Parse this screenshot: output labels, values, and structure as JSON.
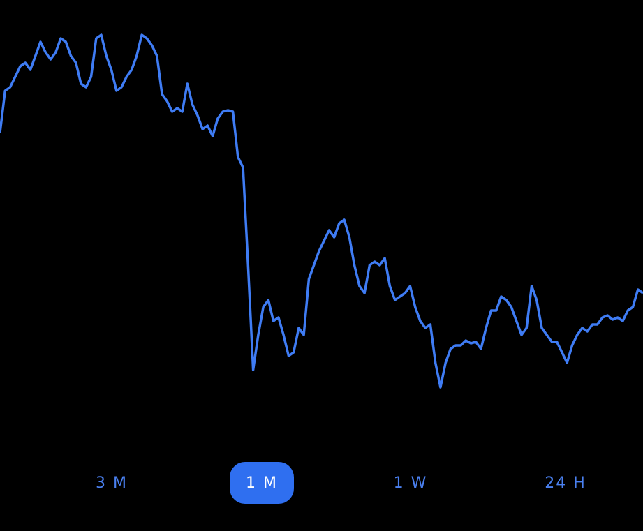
{
  "chart_data": {
    "type": "line",
    "color": "#3f7cf4",
    "values": [
      410,
      470,
      475,
      490,
      505,
      510,
      500,
      520,
      540,
      525,
      515,
      525,
      545,
      540,
      520,
      510,
      480,
      475,
      490,
      545,
      550,
      520,
      500,
      470,
      475,
      490,
      500,
      520,
      550,
      545,
      535,
      520,
      465,
      455,
      440,
      445,
      440,
      480,
      450,
      435,
      415,
      420,
      405,
      430,
      440,
      442,
      440,
      375,
      360,
      220,
      70,
      120,
      160,
      170,
      140,
      145,
      120,
      90,
      95,
      130,
      120,
      200,
      220,
      240,
      255,
      270,
      260,
      280,
      285,
      260,
      220,
      190,
      180,
      220,
      225,
      220,
      230,
      190,
      170,
      175,
      180,
      190,
      160,
      140,
      130,
      135,
      80,
      45,
      80,
      100,
      105,
      105,
      112,
      108,
      110,
      100,
      130,
      155,
      155,
      175,
      170,
      160,
      140,
      120,
      130,
      190,
      170,
      130,
      120,
      110,
      110,
      95,
      80,
      105,
      120,
      130,
      125,
      135,
      135,
      145,
      148,
      142,
      145,
      140,
      155,
      160,
      185,
      180
    ]
  },
  "range_buttons": [
    "3 M",
    "1 M",
    "1 W",
    "24 H"
  ],
  "selected_index": 1
}
